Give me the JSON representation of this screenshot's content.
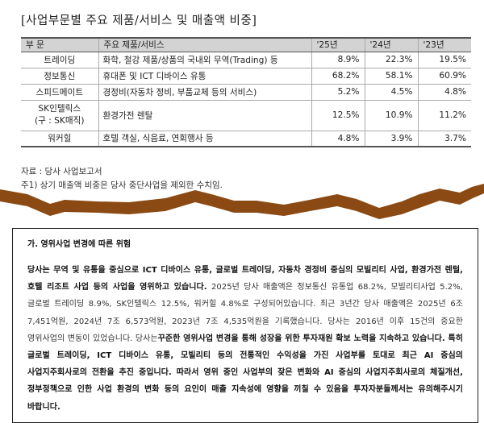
{
  "section_title": "[사업부문별 주요 제품/서비스 및 매출액 비중]",
  "table": {
    "headers": [
      "부 문",
      "주요 제품/서비스",
      "'25년",
      "'24년",
      "'23년"
    ],
    "rows": [
      {
        "segment": [
          "트레이딩"
        ],
        "product": "화학, 철강 제품/상품의 국내외 무역(Trading) 등",
        "y25": "8.9%",
        "y24": "22.3%",
        "y23": "19.5%"
      },
      {
        "segment": [
          "정보통신"
        ],
        "product": "휴대폰 및 ICT 디바이스 유통",
        "y25": "68.2%",
        "y24": "58.1%",
        "y23": "60.9%"
      },
      {
        "segment": [
          "스피드메이트"
        ],
        "product": "경정비(자동차 정비, 부품교체 등의 서비스)",
        "y25": "5.2%",
        "y24": "4.5%",
        "y23": "4.8%"
      },
      {
        "segment": [
          "SK인텔릭스",
          "(구 : SK매직)"
        ],
        "product": "환경가전 렌탈",
        "y25": "12.5%",
        "y24": "10.9%",
        "y23": "11.2%"
      },
      {
        "segment": [
          "워커힐"
        ],
        "product": "호텔 객실, 식음료, 연회행사 등",
        "y25": "4.8%",
        "y24": "3.9%",
        "y23": "3.7%"
      }
    ]
  },
  "source_note": "자료 : 당사 사업보고서",
  "footnote": "주1) 상기 매출액 비중은 당사 중단사업을 제외한 수치임.",
  "colors": {
    "torn_edge": "#8b4a14",
    "header_bg": "#d3d3d3"
  },
  "risk": {
    "heading": "가. 영위사업 변경에 따른 위험",
    "p1_bold": "당사는 무역 및 유통을 중심으로 ICT 디바이스 유통, 글로벌 트레이딩, 자동차 경정비 중심의 모빌리티 사업, 환경가전 렌털, 호텔 리조트 사업 등의 사업을 영위하고 있습니다.",
    "p1_text": " 2025년 당사 매출액은 정보통신 유통업 68.2%, 모빌리티사업 5.2%, 글로벌 트레이딩 8.9%, SK인텔릭스 12.5%, 워커힐 4.8%로 구성되어있습니다. 최근 3년간 당사 매출액은 2025년 6조 7,451억원, 2024년 7조 6,573억원, 2023년 7조 4,535억원을 기록했습니다. 당사는 2016년 이후 15건의 중요한 영위사업의 변동이 있었습니다. 당사는",
    "p1_bold2": "꾸준한 영위사업 변경을 통해 성장을 위한 투자재원 확보 노력을 지속하고 있습니다. 특히 글로벌 트레이딩, ICT 디바이스 유통, 모빌리티 등의 전통적인 수익성을 가진 사업부를 토대로 최근 AI 중심의 사업지주회사로의 전환을 추진 중입니다. 따라서 영위 중인 사업부의 잦은 변화와 AI 중심의 사업지주회사로의 체질개선, 정부정책으로 인한 사업 환경의 변화 등의 요인이 매출 지속성에 영향을 끼칠 수 있음을 투자자분들께서는 유의해주시기 바랍니다."
  }
}
